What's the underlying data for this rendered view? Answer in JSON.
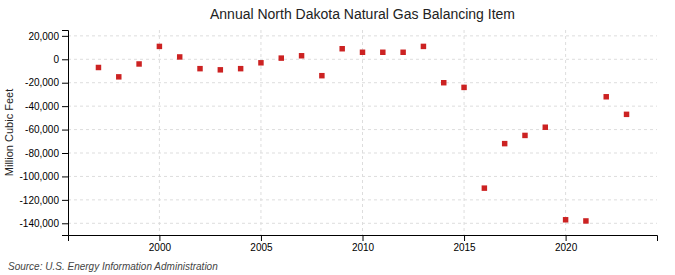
{
  "chart_data": {
    "type": "scatter",
    "title": "Annual North Dakota Natural Gas Balancing Item",
    "ylabel": "Million Cubic Feet",
    "annotations": [
      "Source: U.S. Energy Information Administration"
    ],
    "x": [
      1997,
      1998,
      1999,
      2000,
      2001,
      2002,
      2003,
      2004,
      2005,
      2006,
      2007,
      2008,
      2009,
      2010,
      2011,
      2012,
      2013,
      2014,
      2015,
      2016,
      2017,
      2018,
      2019,
      2020,
      2021,
      2022,
      2023
    ],
    "values": [
      -7000,
      -15000,
      -4000,
      11000,
      2000,
      -8000,
      -9000,
      -8000,
      -3000,
      1000,
      3000,
      -14000,
      9000,
      6000,
      6000,
      6000,
      11000,
      -20000,
      -24000,
      -110000,
      -72000,
      -65000,
      -58000,
      -137000,
      -138000,
      -32000,
      -47000
    ],
    "color": "#cc2222",
    "marker": "square",
    "xlim": [
      1995.5,
      2024.5
    ],
    "xticks": [
      2000,
      2005,
      2010,
      2015,
      2020
    ],
    "ylim": [
      -150000,
      25000
    ],
    "yticks": [
      {
        "value": 20000,
        "label": "20,000"
      },
      0,
      {
        "value": -20000,
        "label": "-20,000"
      },
      {
        "value": -40000,
        "label": "-40,000"
      },
      {
        "value": -60000,
        "label": "-60,000"
      },
      {
        "value": -80000,
        "label": "-80,000"
      },
      {
        "value": -100000,
        "label": "-100,000"
      },
      {
        "value": -120000,
        "label": "-120,000"
      },
      {
        "value": -140000,
        "label": "-140,000"
      }
    ],
    "grid": true
  }
}
